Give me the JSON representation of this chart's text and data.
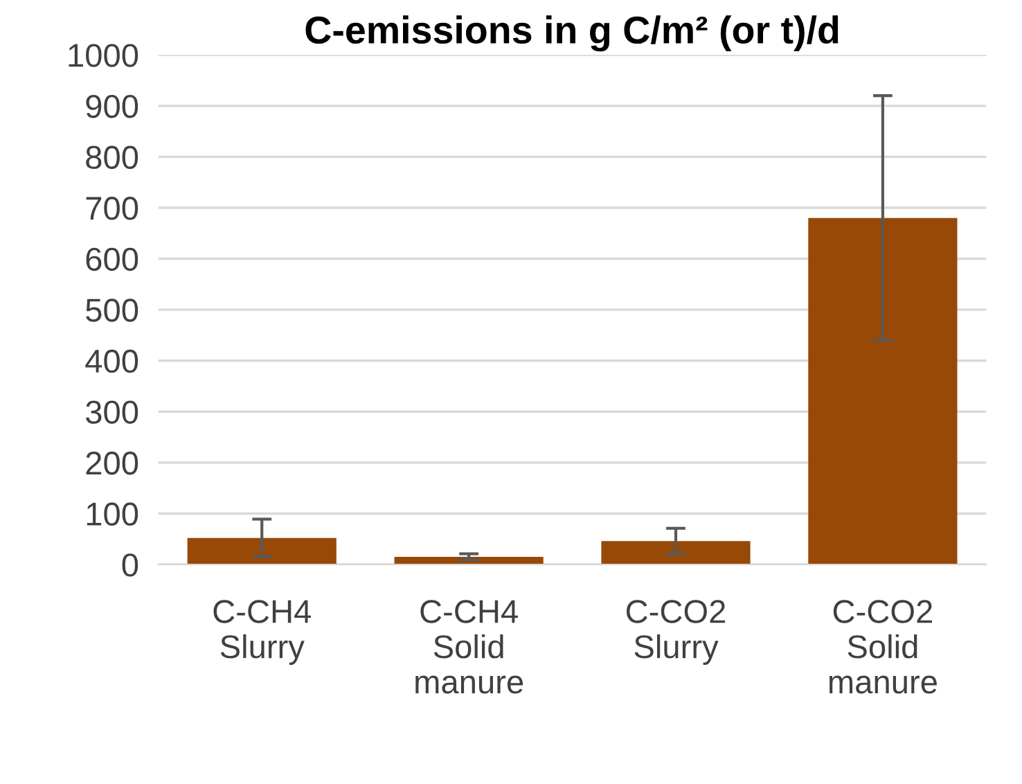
{
  "chart_data": {
    "type": "bar",
    "title": "C-emissions in g C/m² (or t)/d",
    "categories": [
      "C-CH4\nSlurry",
      "C-CH4\nSolid\nmanure",
      "C-CO2\nSlurry",
      "C-CO2\nSolid\nmanure"
    ],
    "series": [
      {
        "color": "#984807",
        "values": [
          52,
          15,
          46,
          680
        ],
        "errors": [
          37,
          6,
          25,
          240
        ]
      }
    ],
    "ylim": [
      0,
      1000
    ],
    "yticks": [
      0,
      100,
      200,
      300,
      400,
      500,
      600,
      700,
      800,
      900,
      1000
    ],
    "grid": "y",
    "legend": false
  }
}
